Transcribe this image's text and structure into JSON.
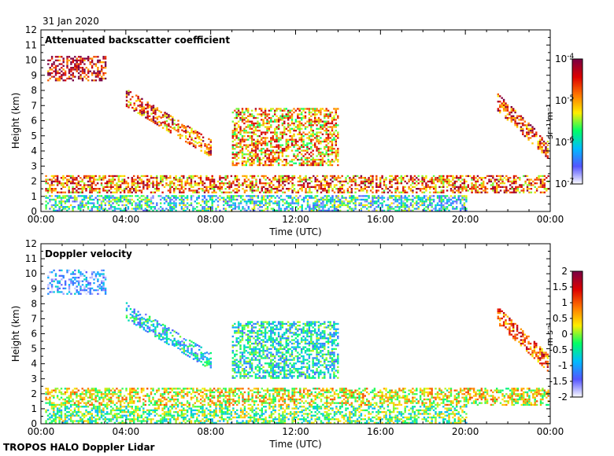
{
  "date": "31 Jan 2020",
  "footer": "TROPOS HALO Doppler Lidar",
  "chart_data": [
    {
      "type": "heatmap",
      "title": "Attenuated backscatter coefficient",
      "xlabel": "Time (UTC)",
      "ylabel": "Height (km)",
      "x_ticks": [
        "00:00",
        "04:00",
        "08:00",
        "12:00",
        "16:00",
        "20:00",
        "00:00"
      ],
      "xlim": [
        0,
        24
      ],
      "y_ticks": [
        0,
        1,
        2,
        3,
        4,
        5,
        6,
        7,
        8,
        9,
        10,
        11,
        12
      ],
      "ylim": [
        0,
        12
      ],
      "colorbar": {
        "scale": "log",
        "range": [
          1e-07,
          0.0001
        ],
        "ticks": [
          "10",
          "10",
          "10",
          "10"
        ],
        "tick_exponents": [
          "-7",
          "-6",
          "-5",
          "-4"
        ],
        "unit": "sr⁻¹ m⁻¹",
        "colors": [
          "#ffffff",
          "#5555ff",
          "#00bbff",
          "#00ff66",
          "#ffee00",
          "#ff7700",
          "#dd0000",
          "#7a0044"
        ]
      },
      "features": [
        {
          "name": "cirrus-top",
          "t": [
            0.3,
            3.0
          ],
          "h": [
            8.6,
            10.2
          ],
          "log_value": -4.3
        },
        {
          "name": "descending-cloud",
          "t": [
            4.0,
            8.0
          ],
          "h": [
            3.3,
            7.5
          ],
          "log_value": -4.7
        },
        {
          "name": "midlevel-cloud",
          "t": [
            9.0,
            14.0
          ],
          "h": [
            3.0,
            6.8
          ],
          "log_value": -5.0
        },
        {
          "name": "boundary-layer-top",
          "t": [
            0.2,
            23.9
          ],
          "h": [
            1.2,
            2.3
          ],
          "log_value": -4.8
        },
        {
          "name": "aerosol-layer",
          "t": [
            0.2,
            20.0
          ],
          "h": [
            0.0,
            1.0
          ],
          "log_value": -6.0
        },
        {
          "name": "late-descending-cloud",
          "t": [
            21.5,
            23.9
          ],
          "h": [
            3.2,
            7.2
          ],
          "log_value": -4.6
        }
      ]
    },
    {
      "type": "heatmap",
      "title": "Doppler velocity",
      "xlabel": "Time (UTC)",
      "ylabel": "Height (km)",
      "x_ticks": [
        "00:00",
        "04:00",
        "08:00",
        "12:00",
        "16:00",
        "20:00",
        "00:00"
      ],
      "xlim": [
        0,
        24
      ],
      "y_ticks": [
        0,
        1,
        2,
        3,
        4,
        5,
        6,
        7,
        8,
        9,
        10,
        11,
        12
      ],
      "ylim": [
        0,
        12
      ],
      "colorbar": {
        "scale": "linear",
        "range": [
          -2,
          2
        ],
        "ticks": [
          "-2",
          "-1.5",
          "-1",
          "-0.5",
          "0",
          "0.5",
          "1",
          "1.5",
          "2"
        ],
        "unit": "m s⁻¹",
        "colors": [
          "#ffffff",
          "#5555ff",
          "#00bbff",
          "#00ff66",
          "#ffee00",
          "#ff7700",
          "#dd0000",
          "#7a0044"
        ]
      },
      "features": [
        {
          "name": "cirrus-top",
          "t": [
            0.3,
            3.0
          ],
          "h": [
            8.6,
            10.2
          ],
          "value": -1.4
        },
        {
          "name": "descending-cloud",
          "t": [
            4.0,
            8.0
          ],
          "h": [
            3.3,
            7.5
          ],
          "value": -0.8
        },
        {
          "name": "midlevel-cloud",
          "t": [
            9.0,
            14.0
          ],
          "h": [
            3.0,
            6.8
          ],
          "value": -0.6
        },
        {
          "name": "boundary-layer-top",
          "t": [
            0.2,
            23.9
          ],
          "h": [
            1.2,
            2.3
          ],
          "value": 0.3
        },
        {
          "name": "boundary-layer-mixing",
          "t": [
            0.2,
            20.0
          ],
          "h": [
            0.0,
            1.2
          ],
          "value": -0.2
        },
        {
          "name": "late-descending-cloud",
          "t": [
            21.5,
            23.9
          ],
          "h": [
            3.2,
            7.2
          ],
          "value": 1.0
        }
      ]
    }
  ]
}
